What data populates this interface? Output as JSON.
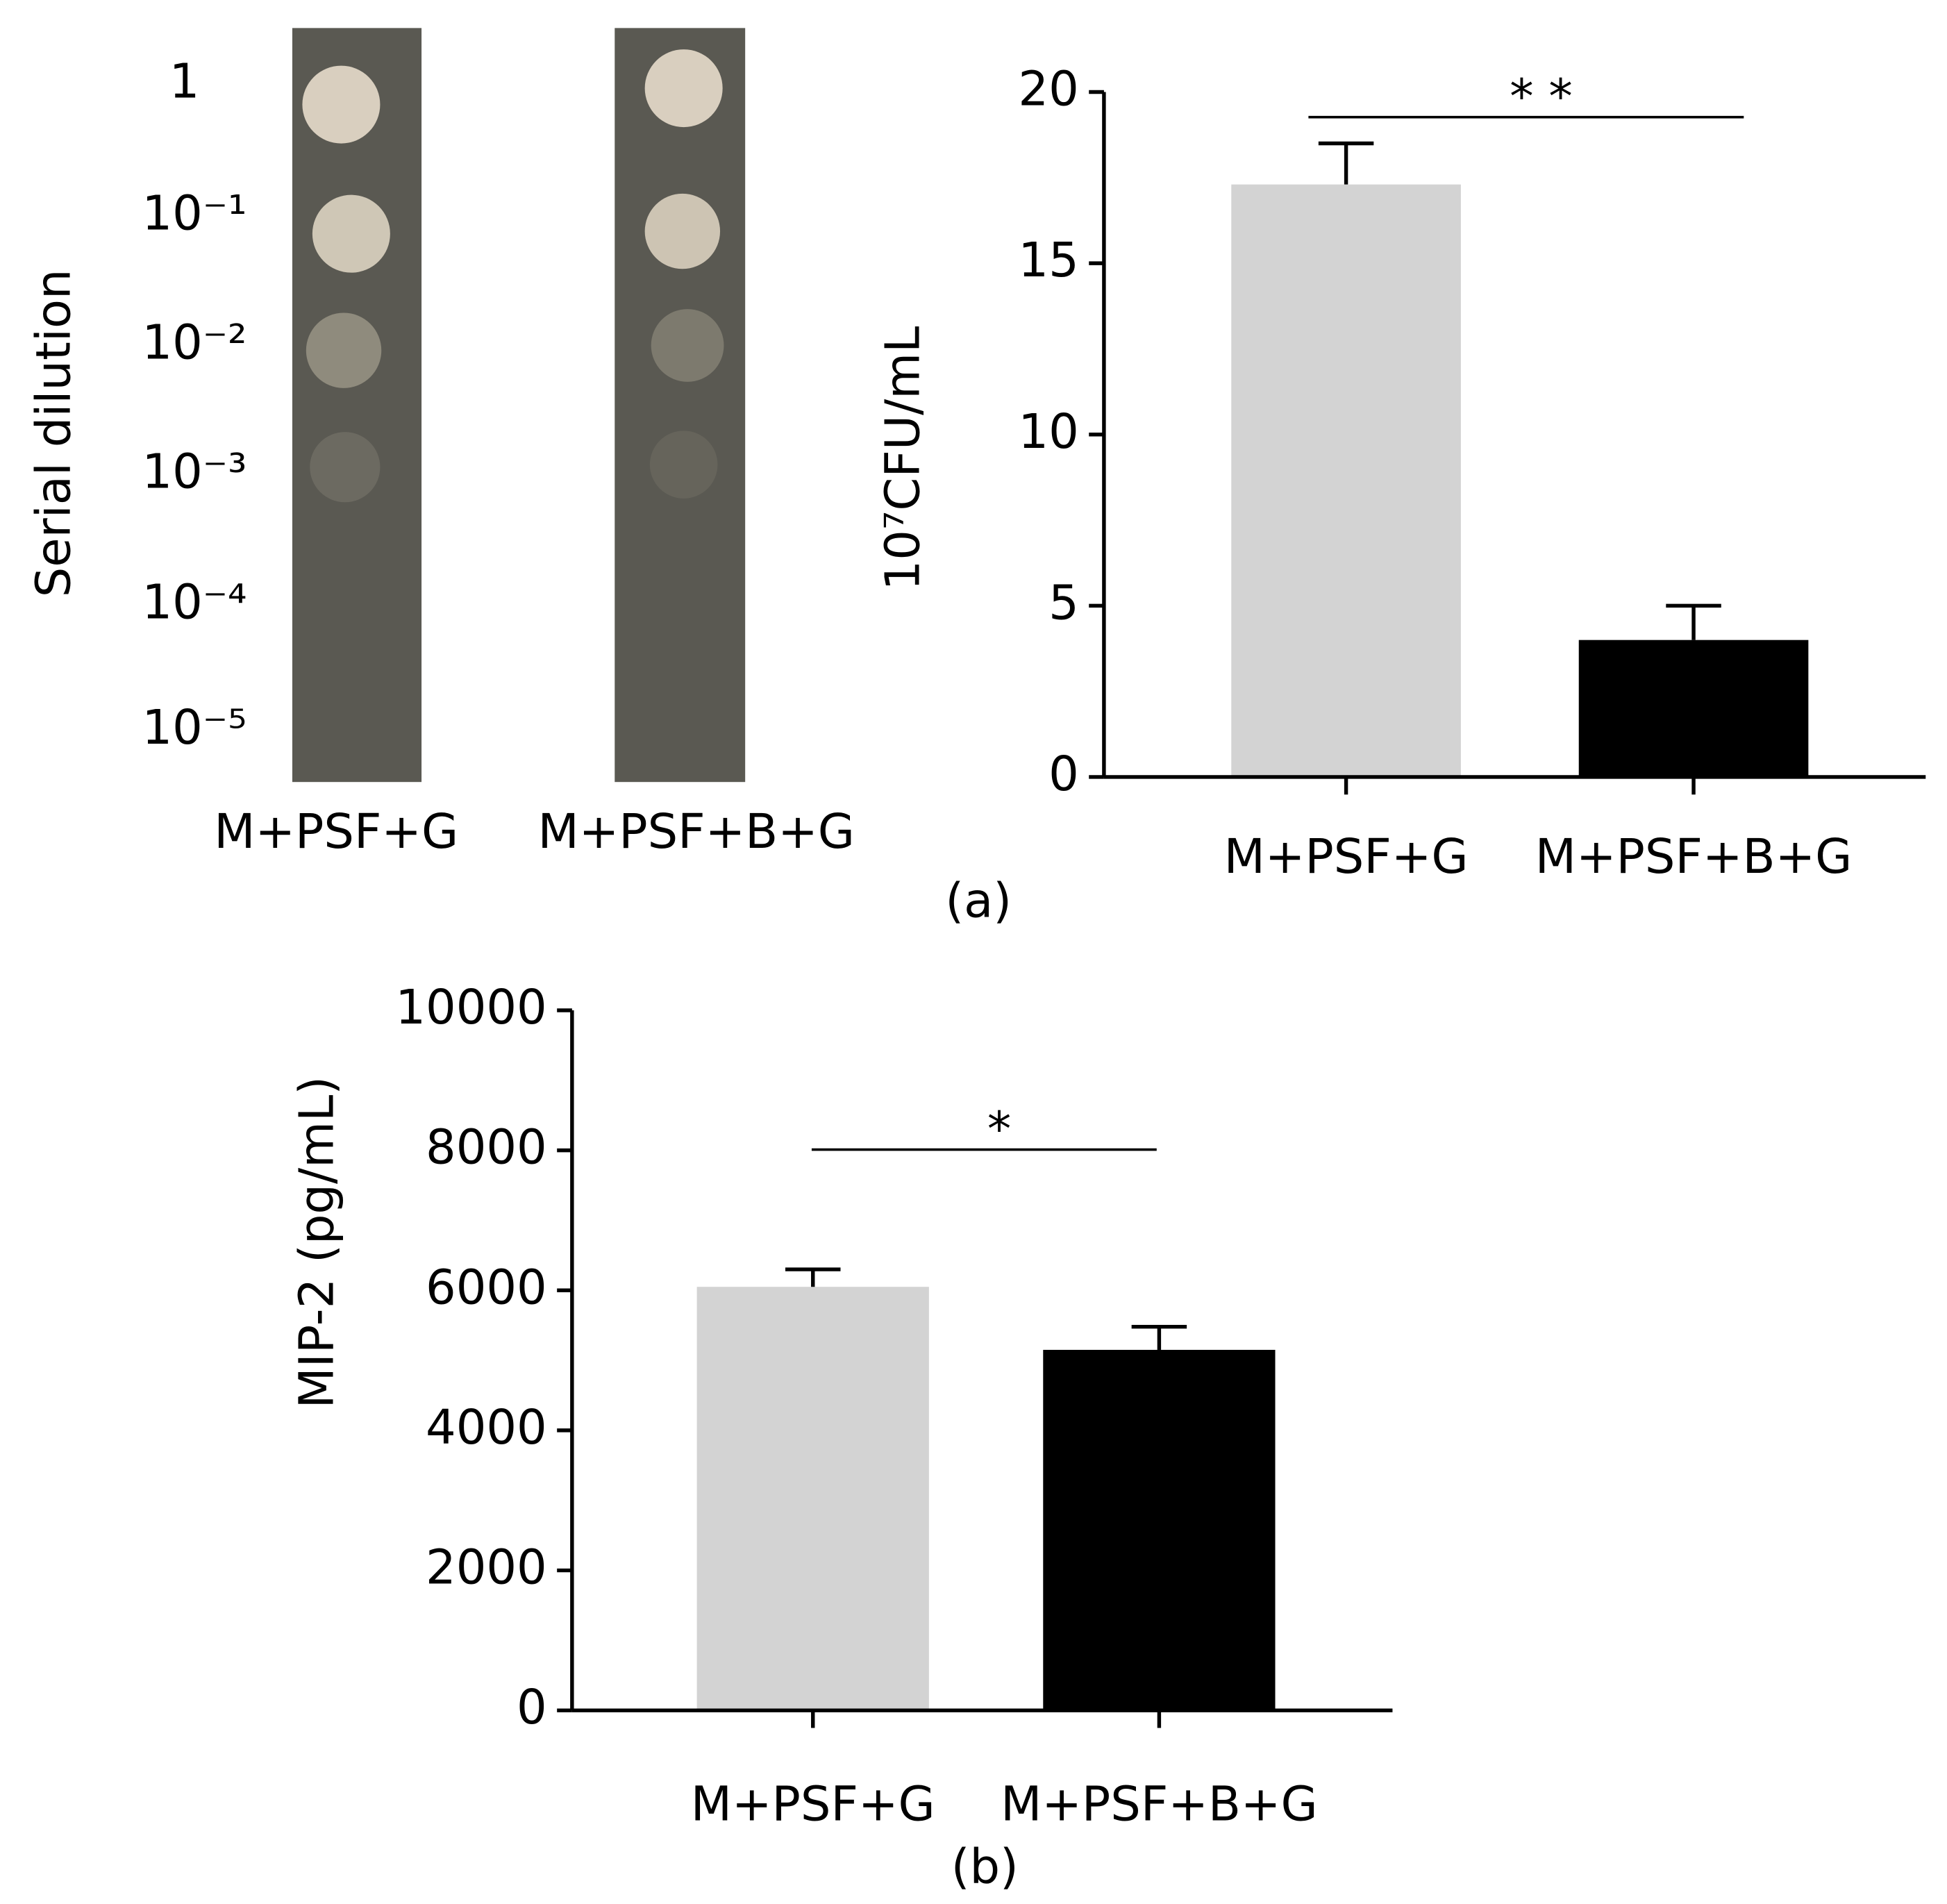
{
  "plate": {
    "axis_label": "Serial dilution",
    "dilutions": [
      "1",
      "10⁻¹",
      "10⁻²",
      "10⁻³",
      "10⁻⁴",
      "10⁻⁵"
    ],
    "strips": [
      "M+PSF+G",
      "M+PSF+B+G"
    ]
  },
  "chart_data": [
    {
      "type": "bar",
      "panel_label": "(a)",
      "y_label": "10⁷CFU/mL",
      "annotation": "* *",
      "categories": [
        "M+PSF+G",
        "M+PSF+B+G"
      ],
      "values": [
        17.3,
        4.0
      ],
      "errors": [
        1.2,
        1.0
      ],
      "colors": [
        "#d3d3d3",
        "#000000"
      ],
      "ylim": [
        0,
        20
      ],
      "yticks": [
        0,
        5,
        10,
        15,
        20
      ],
      "grid": false
    },
    {
      "type": "bar",
      "panel_label": "(b)",
      "y_label": "MIP-2 (pg/mL)",
      "annotation": "*",
      "categories": [
        "M+PSF+G",
        "M+PSF+B+G"
      ],
      "values": [
        6050,
        5150
      ],
      "errors": [
        250,
        330
      ],
      "colors": [
        "#d3d3d3",
        "#000000"
      ],
      "ylim": [
        0,
        10000
      ],
      "yticks": [
        0,
        2000,
        4000,
        6000,
        8000,
        10000
      ],
      "grid": false
    }
  ]
}
